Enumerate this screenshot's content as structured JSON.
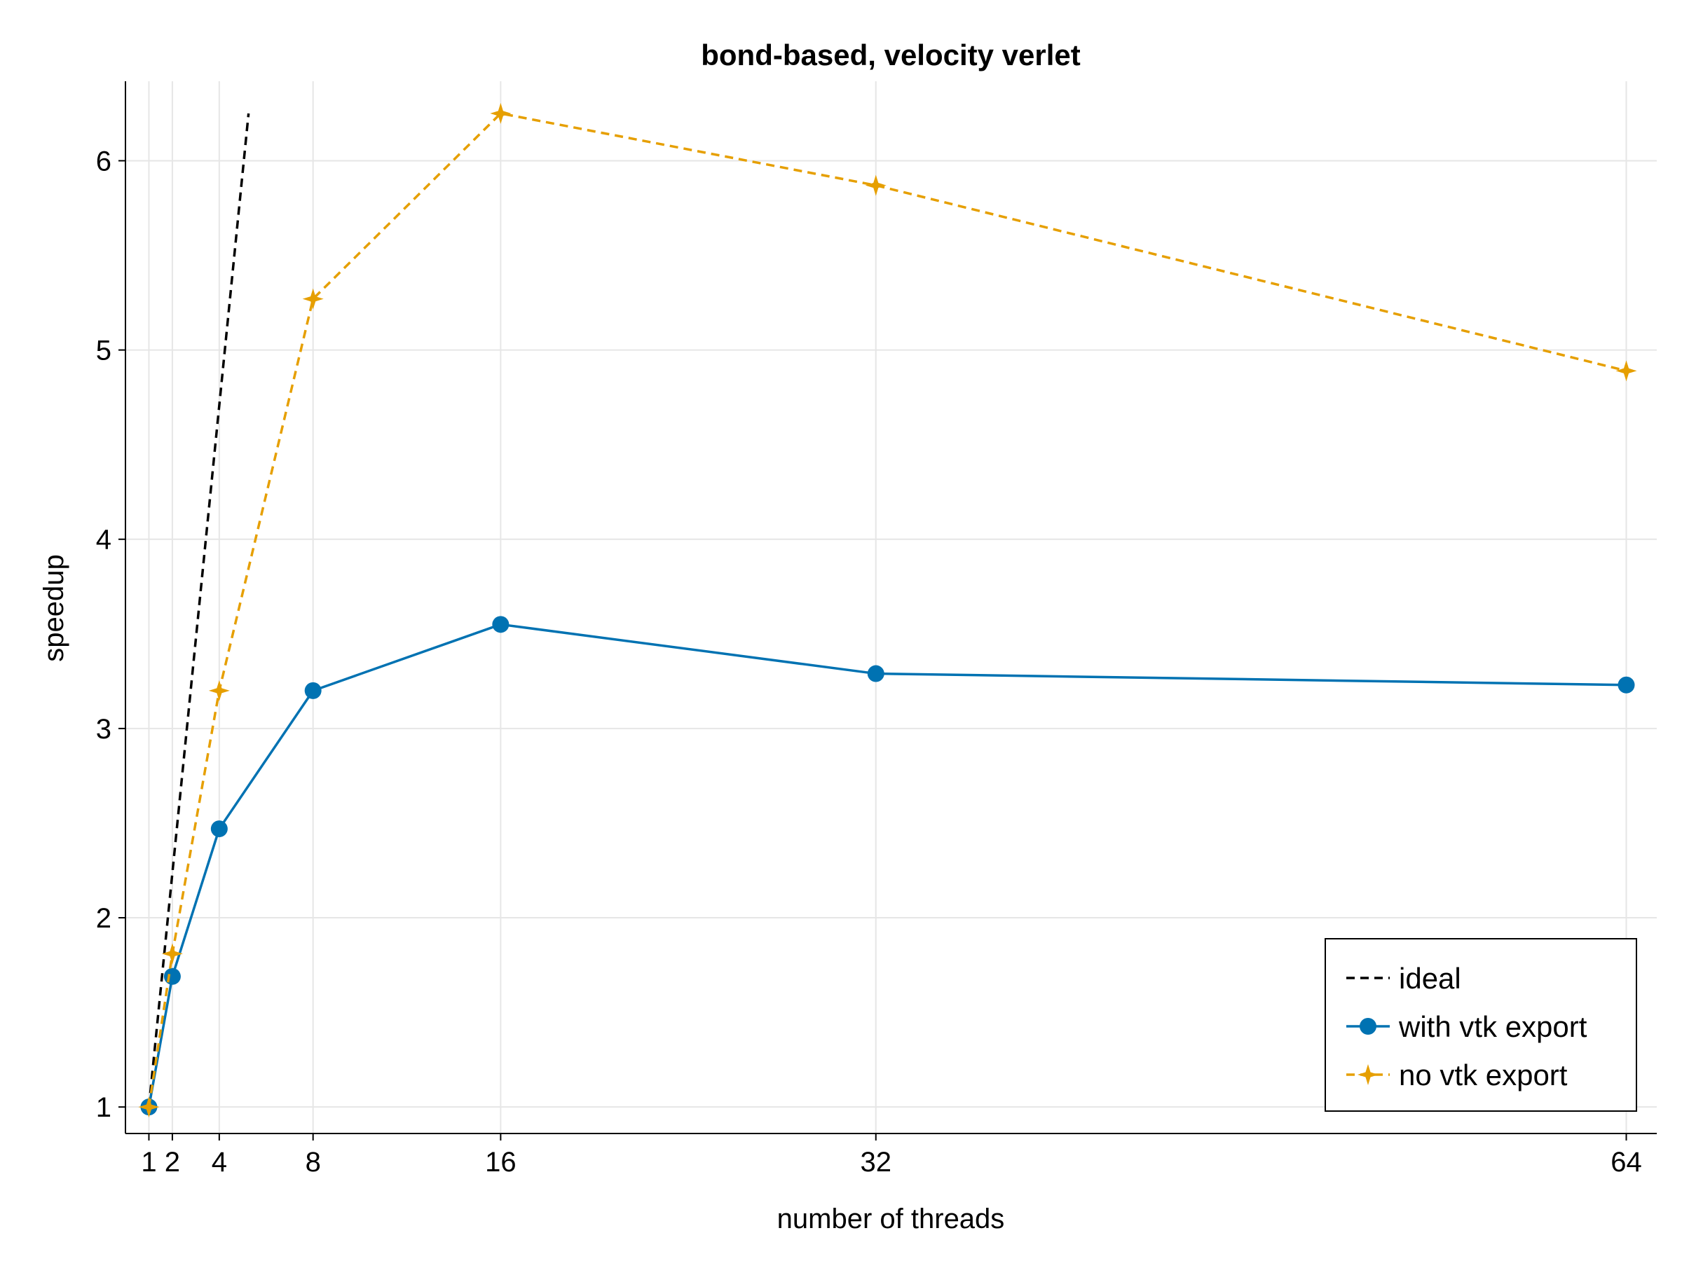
{
  "chart_data": {
    "type": "line",
    "title": "bond-based, velocity verlet",
    "xlabel": "number of threads",
    "ylabel": "speedup",
    "xlim": [
      0,
      65.3
    ],
    "ylim": [
      0.86,
      6.42
    ],
    "xticks": [
      1,
      2,
      4,
      8,
      16,
      32,
      64
    ],
    "yticks": [
      1,
      2,
      3,
      4,
      5,
      6
    ],
    "grid": true,
    "legend_position": "bottom-right",
    "series": [
      {
        "name": "ideal",
        "style": "dashed",
        "color": "#000000",
        "marker": "none",
        "x": [
          1,
          5.25
        ],
        "y": [
          1,
          6.25
        ]
      },
      {
        "name": "with vtk export",
        "style": "solid",
        "color": "#0072b2",
        "marker": "circle",
        "x": [
          1,
          2,
          4,
          8,
          16,
          32,
          64
        ],
        "y": [
          1.0,
          1.69,
          2.47,
          3.2,
          3.55,
          3.29,
          3.23
        ]
      },
      {
        "name": "no vtk export",
        "style": "dashed",
        "color": "#e69f00",
        "marker": "star",
        "x": [
          1,
          2,
          4,
          8,
          16,
          32,
          64
        ],
        "y": [
          1.0,
          1.81,
          3.2,
          5.27,
          6.25,
          5.87,
          4.89
        ]
      }
    ]
  }
}
